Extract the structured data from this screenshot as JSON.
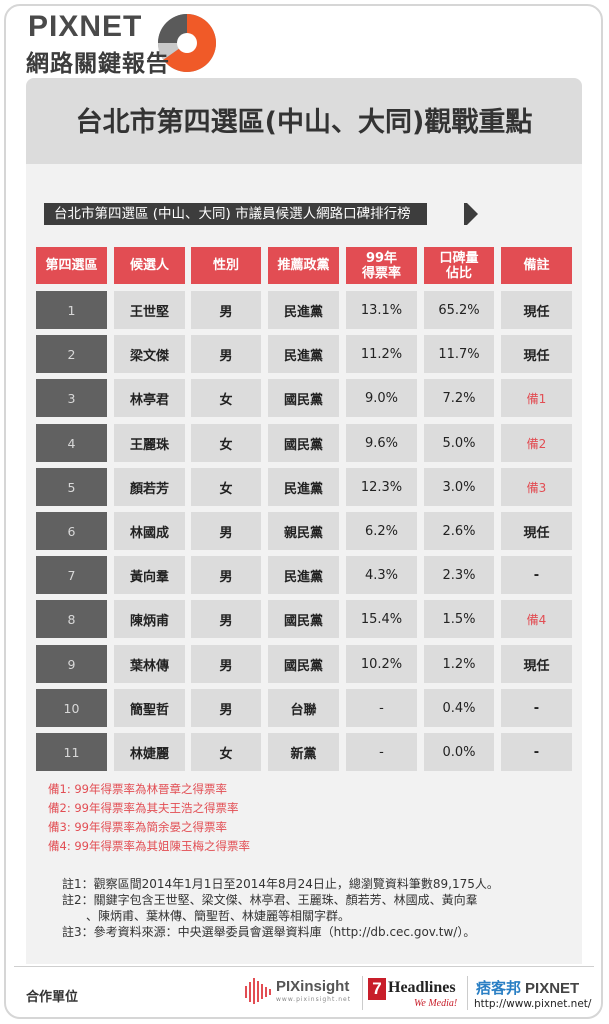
{
  "logo": {
    "line1": "PIXNET",
    "line2": "網路關鍵報告"
  },
  "title": "台北市第四選區(中山、大同)觀戰重點",
  "subtitle": "台北市第四選區 (中山、大同) 市議員候選人網路口碑排行榜",
  "colors": {
    "accent": "#e24d53",
    "dark": "#3d3d3d",
    "panel": "#f2f2f2",
    "cell": "#dcdcdc",
    "index": "#616161"
  },
  "table": {
    "headers": [
      "第四選區",
      "候選人",
      "性別",
      "推薦政黨",
      "99年\n得票率",
      "口碑量\n佔比",
      "備註"
    ],
    "rows": [
      {
        "no": "1",
        "name": "王世堅",
        "gender": "男",
        "party": "民進黨",
        "vote": "13.1%",
        "share": "65.2%",
        "note": "現任",
        "note_red": false
      },
      {
        "no": "2",
        "name": "梁文傑",
        "gender": "男",
        "party": "民進黨",
        "vote": "11.2%",
        "share": "11.7%",
        "note": "現任",
        "note_red": false
      },
      {
        "no": "3",
        "name": "林亭君",
        "gender": "女",
        "party": "國民黨",
        "vote": "9.0%",
        "share": "7.2%",
        "note": "備1",
        "note_red": true
      },
      {
        "no": "4",
        "name": "王麗珠",
        "gender": "女",
        "party": "國民黨",
        "vote": "9.6%",
        "share": "5.0%",
        "note": "備2",
        "note_red": true
      },
      {
        "no": "5",
        "name": "顏若芳",
        "gender": "女",
        "party": "民進黨",
        "vote": "12.3%",
        "share": "3.0%",
        "note": "備3",
        "note_red": true
      },
      {
        "no": "6",
        "name": "林國成",
        "gender": "男",
        "party": "親民黨",
        "vote": "6.2%",
        "share": "2.6%",
        "note": "現任",
        "note_red": false
      },
      {
        "no": "7",
        "name": "黃向羣",
        "gender": "男",
        "party": "民進黨",
        "vote": "4.3%",
        "share": "2.3%",
        "note": "-",
        "note_red": false
      },
      {
        "no": "8",
        "name": "陳炳甫",
        "gender": "男",
        "party": "國民黨",
        "vote": "15.4%",
        "share": "1.5%",
        "note": "備4",
        "note_red": true
      },
      {
        "no": "9",
        "name": "葉林傳",
        "gender": "男",
        "party": "國民黨",
        "vote": "10.2%",
        "share": "1.2%",
        "note": "現任",
        "note_red": false
      },
      {
        "no": "10",
        "name": "簡聖哲",
        "gender": "男",
        "party": "台聯",
        "vote": "-",
        "share": "0.4%",
        "note": "-",
        "note_red": false
      },
      {
        "no": "11",
        "name": "林婕麗",
        "gender": "女",
        "party": "新黨",
        "vote": "-",
        "share": "0.0%",
        "note": "-",
        "note_red": false
      }
    ]
  },
  "bei_notes": [
    "備1: 99年得票率為林晉章之得票率",
    "備2: 99年得票率為其夫王浩之得票率",
    "備3: 99年得票率為簡余晏之得票率",
    "備4: 99年得票率為其姐陳玉梅之得票率"
  ],
  "notes": [
    "註1：觀察區間2014年1月1日至2014年8月24日止，總瀏覽資料筆數89,175人。",
    "註2：關鍵字包含王世堅、梁文傑、林亭君、王麗珠、顏若芳、林國成、黃向羣",
    "　　、陳炳甫、葉林傳、簡聖哲、林婕麗等相關字群。",
    "註3：參考資料來源：中央選舉委員會選舉資料庫（http://db.cec.gov.tw/）。"
  ],
  "footer": {
    "partner_label": "合作單位",
    "pix_insight": "PIXinsight",
    "pix_insight_sub": "www.pixinsight.net",
    "headlines_num": "7",
    "headlines": "Headlines",
    "headlines_sub": "We Media!",
    "pixnet_cn": "痞客邦",
    "pixnet_en": "PIXNET",
    "pixnet_url": "http://www.pixnet.net/"
  }
}
